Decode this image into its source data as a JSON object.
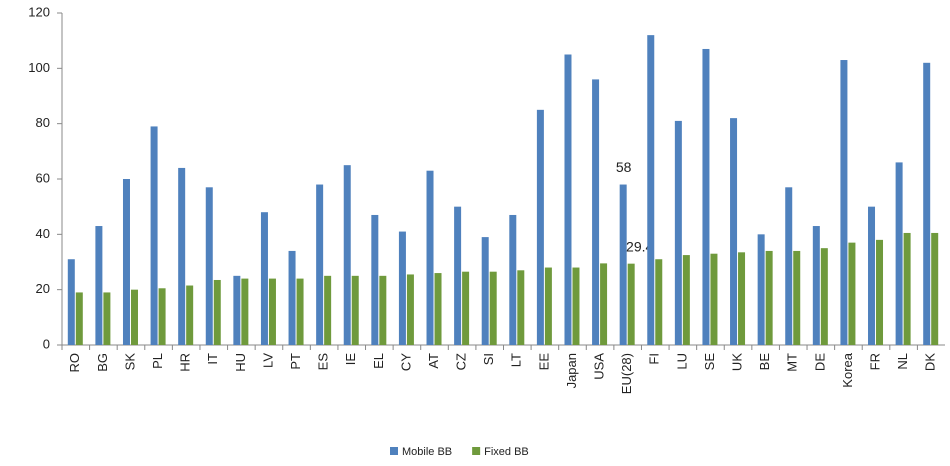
{
  "chart_data": {
    "type": "bar",
    "categories": [
      "RO",
      "BG",
      "SK",
      "PL",
      "HR",
      "IT",
      "HU",
      "LV",
      "PT",
      "ES",
      "IE",
      "EL",
      "CY",
      "AT",
      "CZ",
      "SI",
      "LT",
      "EE",
      "Japan",
      "USA",
      "EU(28)",
      "FI",
      "LU",
      "SE",
      "UK",
      "BE",
      "MT",
      "DE",
      "Korea",
      "FR",
      "NL",
      "DK"
    ],
    "series": [
      {
        "name": "Mobile BB",
        "color": "#4f81bd",
        "values": [
          31,
          43,
          60,
          79,
          64,
          57,
          25,
          48,
          34,
          58,
          65,
          47,
          41,
          63,
          50,
          39,
          47,
          85,
          105,
          96,
          58,
          112,
          81,
          107,
          82,
          40,
          57,
          43,
          103,
          50,
          66,
          102
        ],
        "value_labels": [
          null,
          null,
          null,
          null,
          null,
          null,
          null,
          null,
          null,
          null,
          null,
          null,
          null,
          null,
          null,
          null,
          null,
          null,
          null,
          null,
          "58",
          null,
          null,
          null,
          null,
          null,
          null,
          null,
          null,
          null,
          null,
          null
        ]
      },
      {
        "name": "Fixed BB",
        "color": "#6f9a3c",
        "values": [
          19,
          19,
          20,
          20.5,
          21.5,
          23.5,
          24,
          24,
          24,
          25,
          25,
          25,
          25.5,
          26,
          26.5,
          26.5,
          27,
          28,
          28,
          29.5,
          29.4,
          31,
          32.5,
          33,
          33.5,
          34,
          34,
          35,
          37,
          38,
          40.5,
          40.5
        ],
        "value_labels": [
          null,
          null,
          null,
          null,
          null,
          null,
          null,
          null,
          null,
          null,
          null,
          null,
          null,
          null,
          null,
          null,
          null,
          null,
          null,
          null,
          "29.4",
          null,
          null,
          null,
          null,
          null,
          null,
          null,
          null,
          null,
          null,
          null
        ]
      }
    ],
    "ylim": [
      0,
      120
    ],
    "yticks": [
      0,
      20,
      40,
      60,
      80,
      100,
      120
    ],
    "grid": false,
    "legend": "bottom"
  }
}
